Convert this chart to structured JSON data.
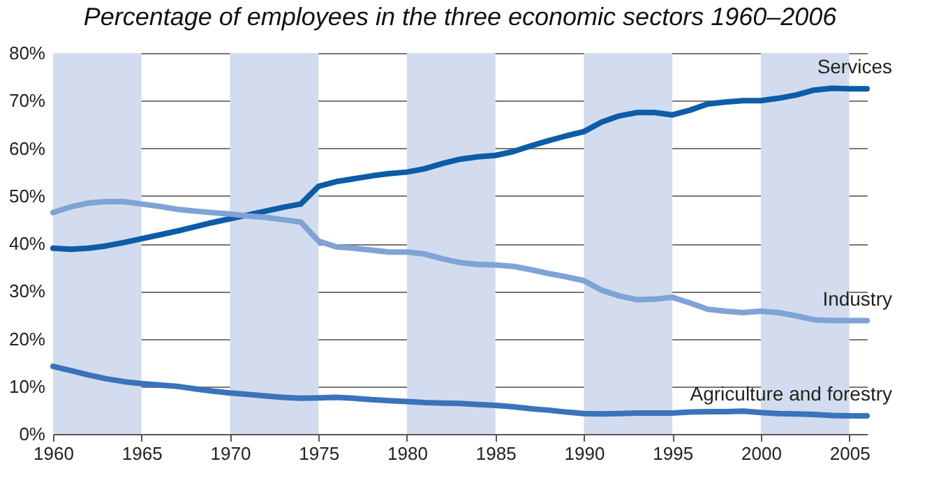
{
  "chart_data": {
    "type": "line",
    "title": "Percentage of employees in the three economic sectors 1960–2006",
    "x": [
      1960,
      1961,
      1962,
      1963,
      1964,
      1965,
      1966,
      1967,
      1968,
      1969,
      1970,
      1971,
      1972,
      1973,
      1974,
      1975,
      1976,
      1977,
      1978,
      1979,
      1980,
      1981,
      1982,
      1983,
      1984,
      1985,
      1986,
      1987,
      1988,
      1989,
      1990,
      1991,
      1992,
      1993,
      1994,
      1995,
      1996,
      1997,
      1998,
      1999,
      2000,
      2001,
      2002,
      2003,
      2004,
      2005,
      2006
    ],
    "series": [
      {
        "name": "Services",
        "color": "#0d5ca8",
        "values": [
          39,
          38.8,
          39,
          39.5,
          40.2,
          41,
          41.8,
          42.6,
          43.5,
          44.4,
          45.2,
          46,
          46.8,
          47.6,
          48.3,
          52,
          53,
          53.6,
          54.2,
          54.7,
          55,
          55.7,
          56.8,
          57.7,
          58.2,
          58.5,
          59.3,
          60.5,
          61.6,
          62.6,
          63.5,
          65.5,
          66.8,
          67.5,
          67.5,
          67,
          68,
          69.3,
          69.7,
          70,
          70,
          70.5,
          71.2,
          72.2,
          72.6,
          72.5,
          72.5
        ]
      },
      {
        "name": "Industry",
        "color": "#7fa3d6",
        "values": [
          46.5,
          47.7,
          48.5,
          48.8,
          48.8,
          48.3,
          47.8,
          47.2,
          46.8,
          46.5,
          46.2,
          45.8,
          45.5,
          45,
          44.5,
          40.5,
          39.3,
          39,
          38.6,
          38.2,
          38.2,
          37.8,
          36.8,
          36,
          35.6,
          35.5,
          35.2,
          34.5,
          33.7,
          33,
          32.2,
          30.2,
          29,
          28.2,
          28.3,
          28.7,
          27.5,
          26.2,
          25.8,
          25.5,
          25.8,
          25.5,
          24.8,
          24,
          23.8,
          23.8,
          23.8
        ]
      },
      {
        "name": "Agriculture and forestry",
        "color": "#3a73bb",
        "values": [
          14.2,
          13.3,
          12.4,
          11.6,
          11,
          10.6,
          10.3,
          10,
          9.5,
          9,
          8.6,
          8.3,
          8,
          7.7,
          7.5,
          7.6,
          7.7,
          7.5,
          7.2,
          7,
          6.8,
          6.6,
          6.5,
          6.4,
          6.2,
          6,
          5.7,
          5.3,
          5,
          4.6,
          4.3,
          4.2,
          4.3,
          4.4,
          4.4,
          4.4,
          4.6,
          4.7,
          4.7,
          4.8,
          4.5,
          4.3,
          4.2,
          4.1,
          3.9,
          3.8,
          3.8
        ]
      }
    ],
    "xlim": [
      1960,
      2006
    ],
    "xticks": [
      1960,
      1965,
      1970,
      1975,
      1980,
      1985,
      1990,
      1995,
      2000,
      2005
    ],
    "ylim": [
      0,
      80
    ],
    "yticks": [
      {
        "value": 0,
        "label": "0%"
      },
      {
        "value": 10,
        "label": "10%"
      },
      {
        "value": 20,
        "label": "20%"
      },
      {
        "value": 30,
        "label": "30%"
      },
      {
        "value": 40,
        "label": "40%"
      },
      {
        "value": 50,
        "label": "50%"
      },
      {
        "value": 60,
        "label": "60%"
      },
      {
        "value": 70,
        "label": "70%"
      },
      {
        "value": 80,
        "label": "80%"
      }
    ],
    "grid": "y",
    "legend": false,
    "line_style": "solid",
    "marker": "none",
    "bands": [
      {
        "axis": "x",
        "from": 1960,
        "to": 1965,
        "color": "#d3dcee"
      },
      {
        "axis": "x",
        "from": 1970,
        "to": 1975,
        "color": "#d3dcee"
      },
      {
        "axis": "x",
        "from": 1980,
        "to": 1985,
        "color": "#d3dcee"
      },
      {
        "axis": "x",
        "from": 1990,
        "to": 1995,
        "color": "#d3dcee"
      },
      {
        "axis": "x",
        "from": 2000,
        "to": 2005,
        "color": "#d3dcee"
      }
    ]
  }
}
